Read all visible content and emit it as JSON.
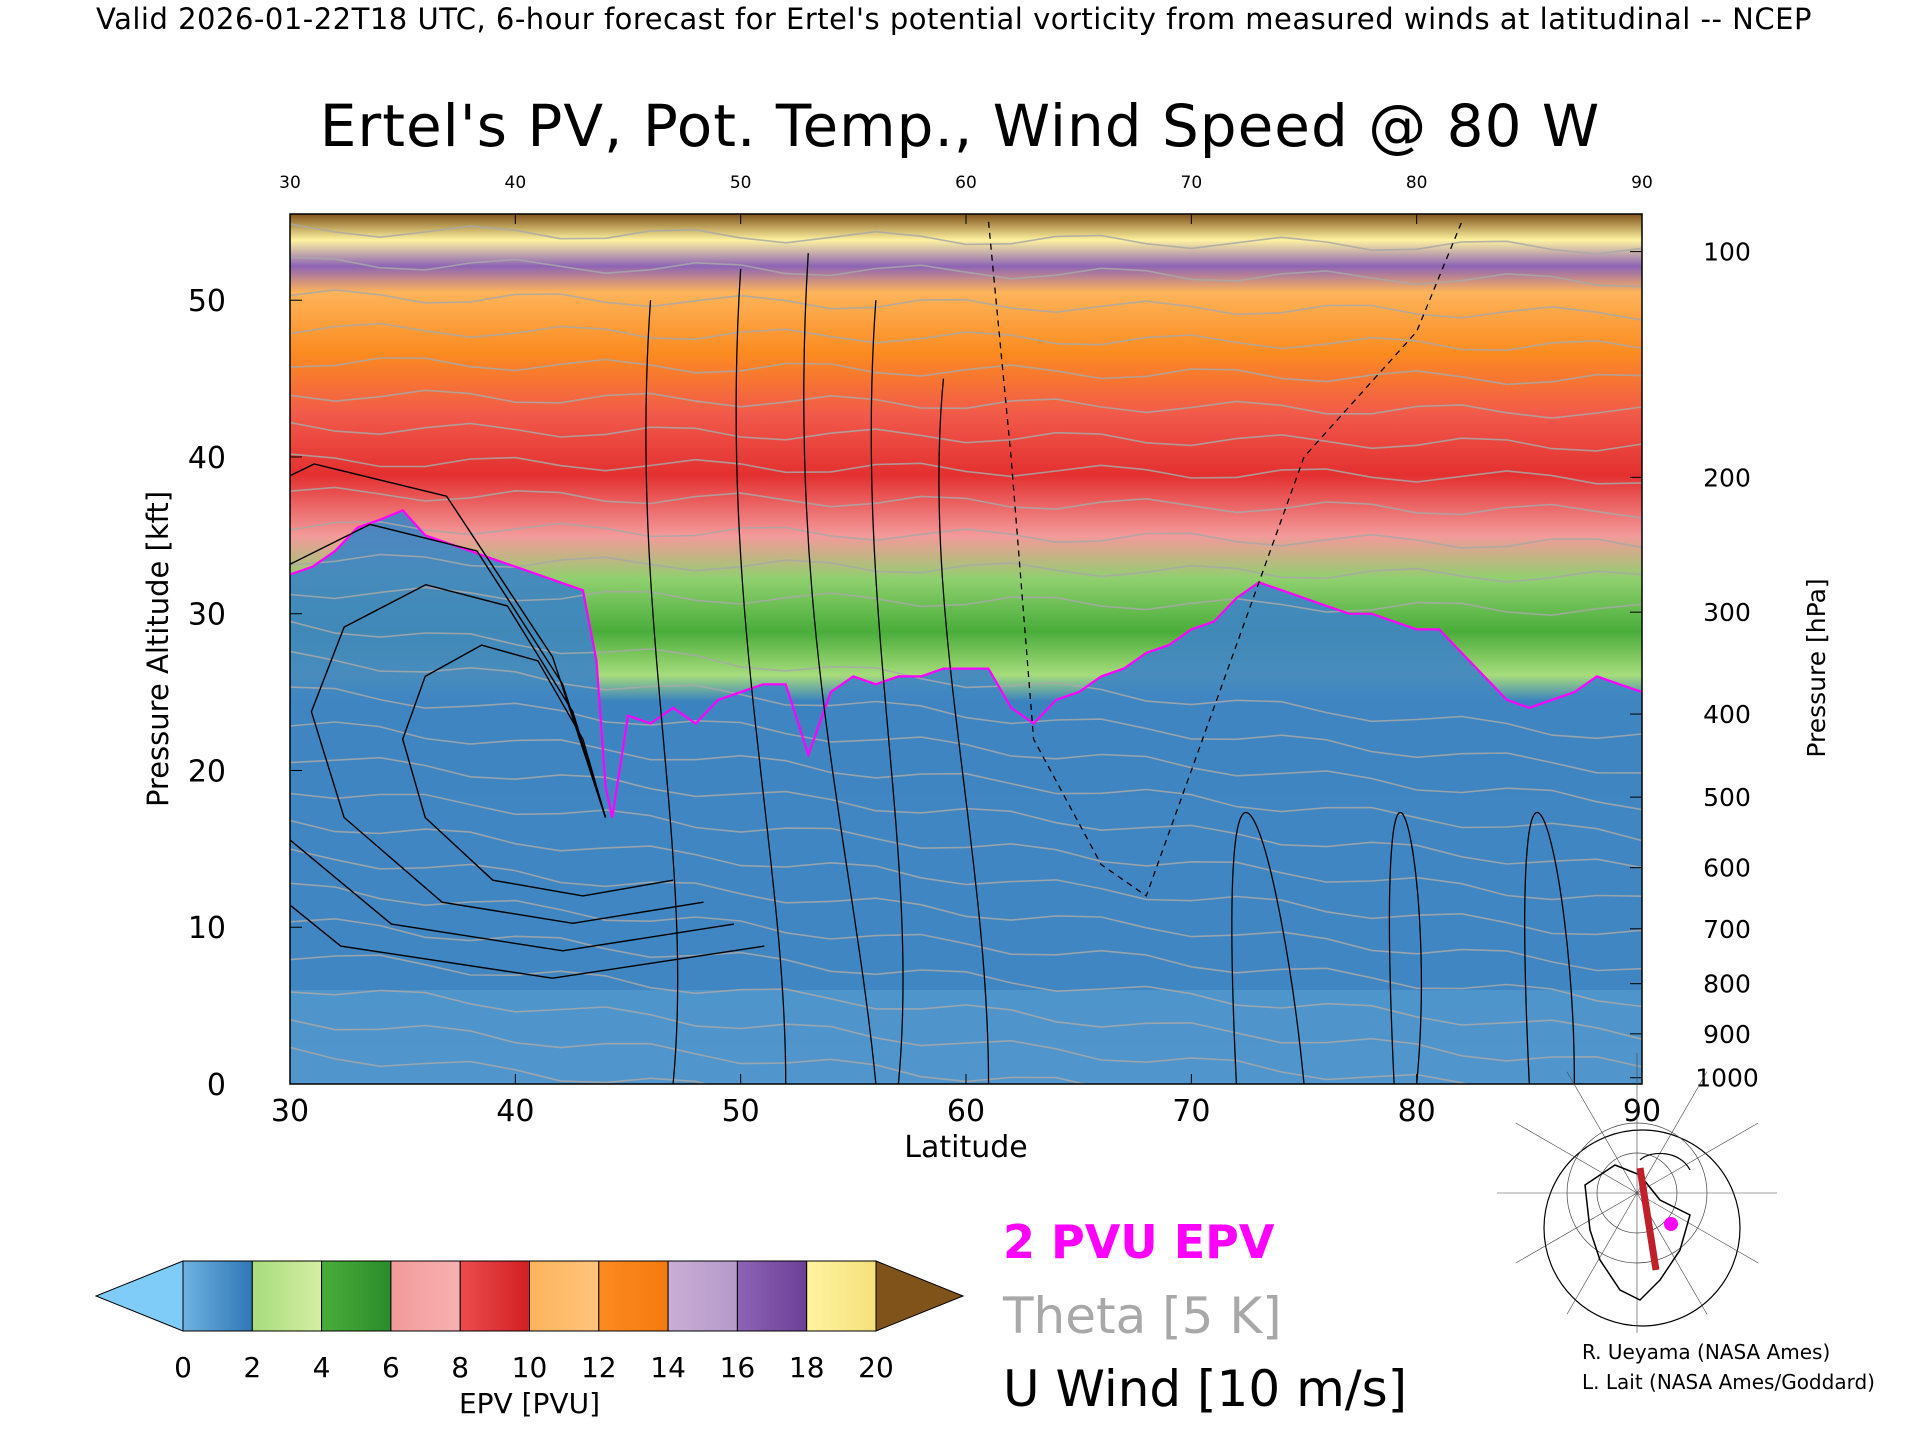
{
  "header": "Valid 2026-01-22T18 UTC, 6-hour forecast for Ertel's potential vorticity from measured winds at latitudinal -- NCEP",
  "credits": [
    "R. Ueyama (NASA Ames)",
    "L. Lait (NASA Ames/Goddard)"
  ],
  "legend": {
    "pvu_line": "2 PVU EPV",
    "theta_line": "Theta [5 K]",
    "uwind_line": "U Wind [10 m/s]",
    "pvu_color": "#ff00ff",
    "theta_color": "#a8a8a8",
    "uwind_color": "#000000"
  },
  "colorbar": {
    "label": "EPV [PVU]",
    "ticks": [
      "0",
      "2",
      "4",
      "6",
      "8",
      "10",
      "12",
      "14",
      "16",
      "18",
      "20"
    ],
    "under_color": "#80ccf8",
    "over_color": "#80531a",
    "bins": [
      [
        "#6fb3e0",
        "#2f76b6"
      ],
      [
        "#a7dc7c",
        "#d6eea4"
      ],
      [
        "#4aad3a",
        "#2a8c2a"
      ],
      [
        "#f39a9a",
        "#f6b1b1"
      ],
      [
        "#ea4d4d",
        "#d21f24"
      ],
      [
        "#fdb45a",
        "#fec47d"
      ],
      [
        "#fb8b20",
        "#f47a0e"
      ],
      [
        "#c9aed6",
        "#b59ac9"
      ],
      [
        "#8d64b5",
        "#6b3f97"
      ],
      [
        "#fef3a0",
        "#f5e17c"
      ]
    ]
  },
  "chart_data": {
    "type": "heatmap",
    "title": "Ertel's PV, Pot. Temp., Wind Speed @ 80 W",
    "xlabel": "Latitude",
    "ylabel": "Pressure Altitude [kft]",
    "ylabel_right": "Pressure [hPa]",
    "xlim": [
      30,
      90
    ],
    "ylim": [
      0,
      55.5
    ],
    "x_ticks": [
      "30",
      "40",
      "50",
      "60",
      "70",
      "80",
      "90"
    ],
    "top_x_ticks": [
      "30",
      "40",
      "50",
      "60",
      "70",
      "80",
      "90"
    ],
    "y_ticks": [
      "0",
      "10",
      "20",
      "30",
      "40",
      "50"
    ],
    "pressure_ticks": [
      {
        "label": "100",
        "kft": 53.1
      },
      {
        "label": "200",
        "kft": 38.7
      },
      {
        "label": "300",
        "kft": 30.1
      },
      {
        "label": "400",
        "kft": 23.6
      },
      {
        "label": "500",
        "kft": 18.3
      },
      {
        "label": "600",
        "kft": 13.8
      },
      {
        "label": "700",
        "kft": 9.9
      },
      {
        "label": "800",
        "kft": 6.4
      },
      {
        "label": "900",
        "kft": 3.2
      },
      {
        "label": "1000",
        "kft": 0.4
      }
    ],
    "pv2_tropopause": {
      "lat": [
        30,
        31,
        32,
        33,
        34,
        35,
        36,
        37,
        38,
        39,
        40,
        41,
        42,
        43,
        43.6,
        44,
        44.3,
        45,
        46,
        47,
        48,
        49,
        50,
        51,
        52,
        53,
        54,
        55,
        56,
        57,
        58,
        59,
        60,
        61,
        62,
        63,
        64,
        65,
        66,
        67,
        68,
        69,
        70,
        71,
        72,
        73,
        74,
        75,
        76,
        77,
        78,
        79,
        80,
        81,
        82,
        83,
        84,
        85,
        86,
        87,
        88,
        89,
        90
      ],
      "kft": [
        32.5,
        33,
        34,
        35.5,
        36,
        36.6,
        35,
        34.5,
        34,
        33.5,
        33,
        32.5,
        32,
        31.5,
        27,
        19,
        17,
        23.5,
        23,
        24,
        23,
        24.5,
        25,
        25.5,
        25.5,
        21,
        25,
        26,
        25.5,
        26,
        26,
        26.5,
        26.5,
        26.5,
        24,
        23,
        24.5,
        25,
        26,
        26.5,
        27.5,
        28,
        29,
        29.5,
        31,
        32,
        31.5,
        31,
        30.5,
        30,
        30,
        29.5,
        29,
        29,
        27.5,
        26,
        24.5,
        24,
        24.5,
        25,
        26,
        25.5,
        25
      ]
    },
    "u_wind_contours_m_s": [
      -10,
      0,
      10,
      20,
      30,
      40,
      50
    ],
    "theta_contours_interval_K": 5,
    "epv_range_pvu": [
      0,
      20
    ],
    "epv_colorbar_ticks": [
      0,
      2,
      4,
      6,
      8,
      10,
      12,
      14,
      16,
      18,
      20
    ]
  }
}
